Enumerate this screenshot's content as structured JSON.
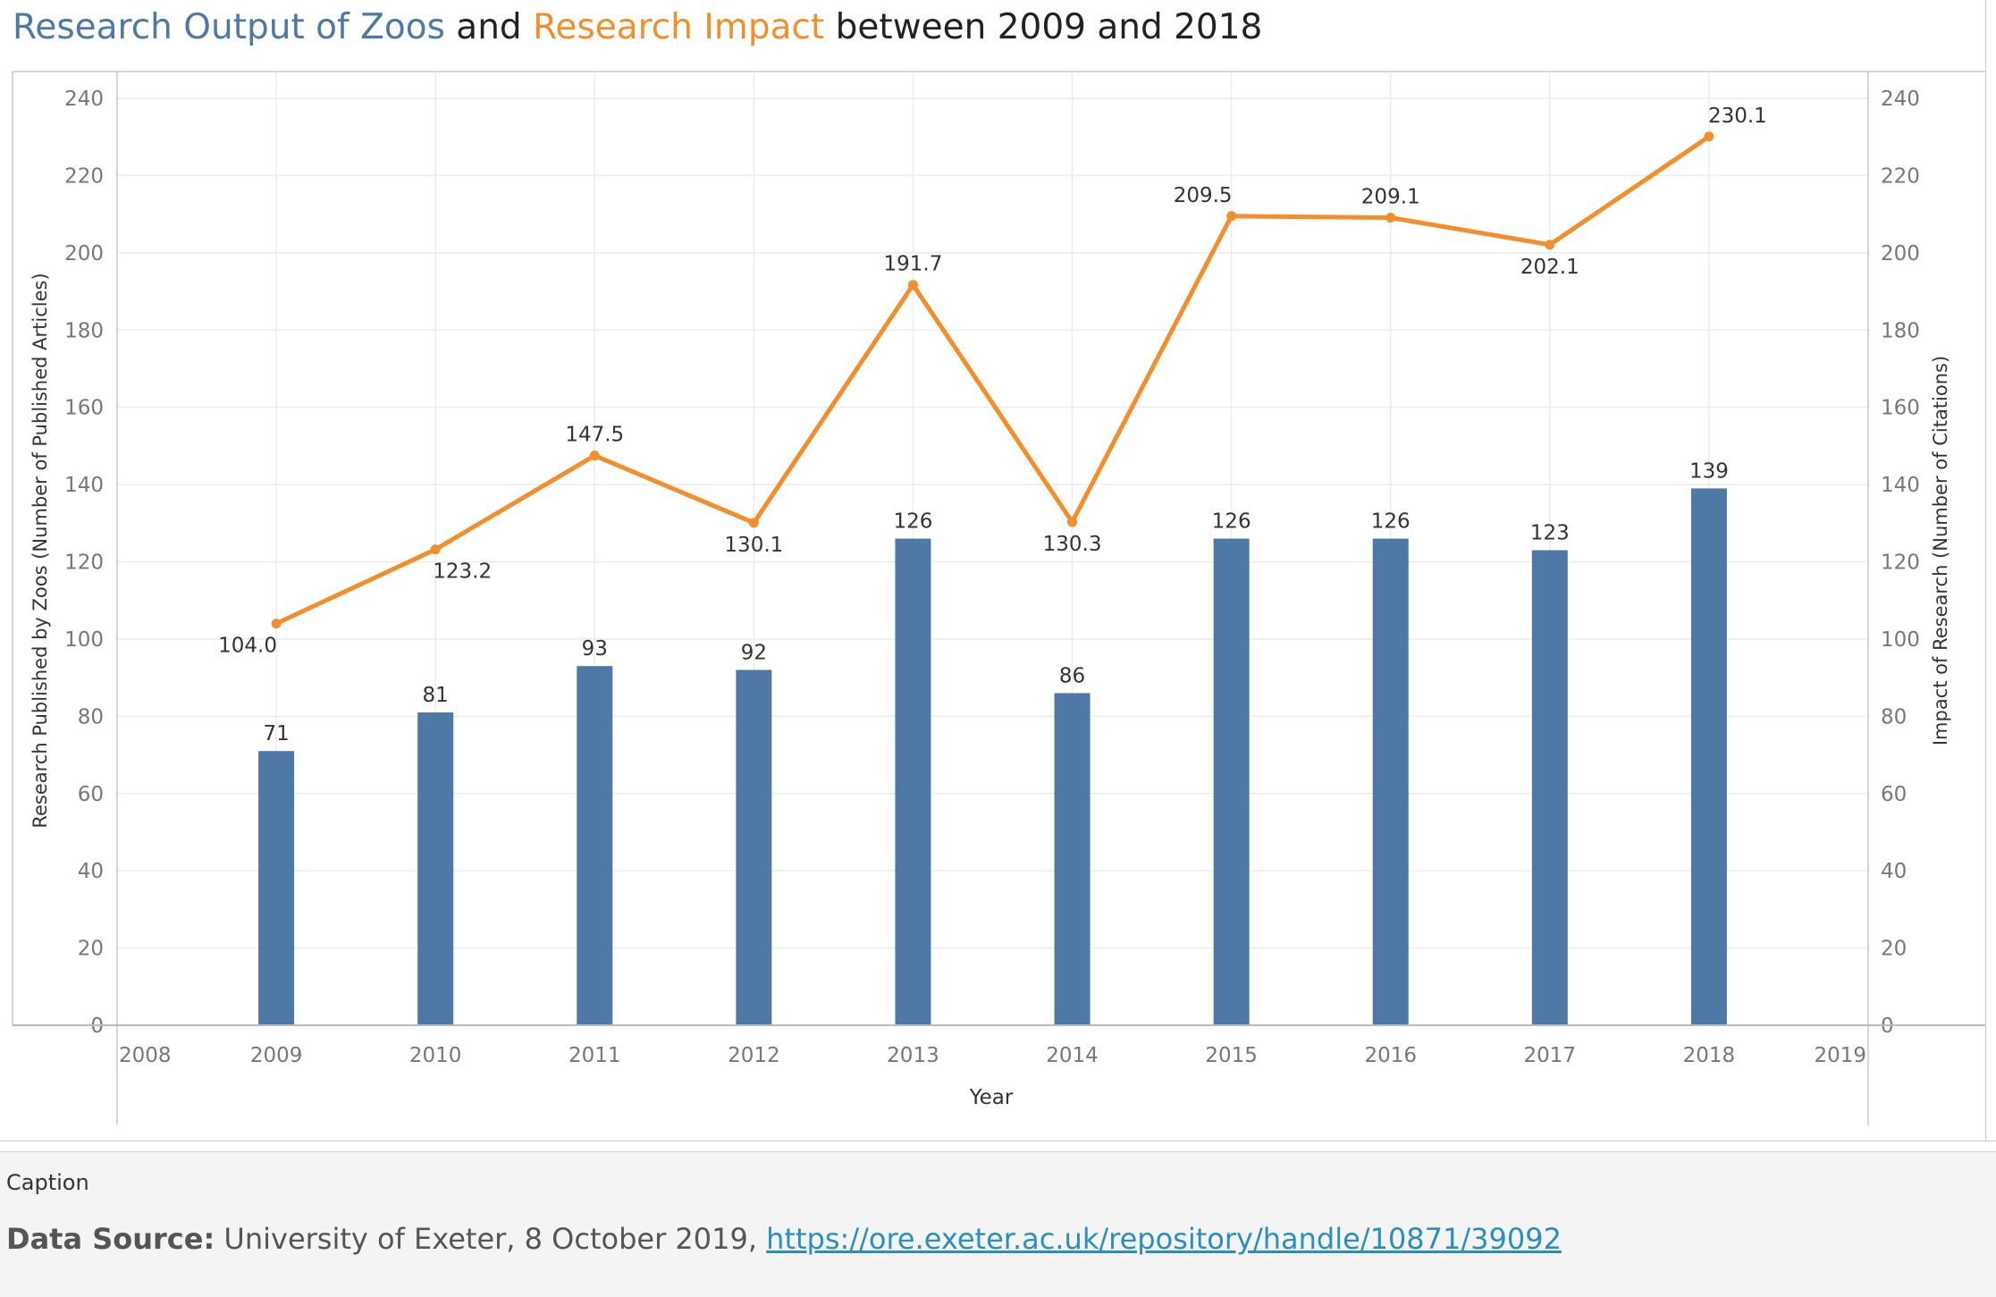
{
  "title": {
    "part1": "Research Output of Zoos",
    "part2": " and ",
    "part3": "Research Impact",
    "part4": " between 2009 and 2018"
  },
  "colors": {
    "bars": "#4e79a7",
    "line": "#f28e2b",
    "grid": "#ececec",
    "axis": "#c8c8c8"
  },
  "chart_data": {
    "type": "bar",
    "categories": [
      "2009",
      "2010",
      "2011",
      "2012",
      "2013",
      "2014",
      "2015",
      "2016",
      "2017",
      "2018"
    ],
    "series": [
      {
        "name": "Research Output of Zoos",
        "type": "bar",
        "axis": "left",
        "values": [
          71,
          81,
          93,
          92,
          126,
          86,
          126,
          126,
          123,
          139
        ]
      },
      {
        "name": "Research Impact",
        "type": "line",
        "axis": "right",
        "values": [
          104.0,
          123.2,
          147.5,
          130.1,
          191.7,
          130.3,
          209.5,
          209.1,
          202.1,
          230.1
        ]
      }
    ],
    "x_ticks": [
      "2008",
      "2009",
      "2010",
      "2011",
      "2012",
      "2013",
      "2014",
      "2015",
      "2016",
      "2017",
      "2018",
      "2019"
    ],
    "xlim": [
      2008,
      2019
    ],
    "y_ticks": [
      "0",
      "20",
      "40",
      "60",
      "80",
      "100",
      "120",
      "140",
      "160",
      "180",
      "200",
      "220",
      "240"
    ],
    "ylim": [
      0,
      240
    ],
    "y2_ticks": [
      "0",
      "20",
      "40",
      "60",
      "80",
      "100",
      "120",
      "140",
      "160",
      "180",
      "200",
      "220",
      "240"
    ],
    "y2lim": [
      0,
      240
    ],
    "bar_labels": [
      "71",
      "81",
      "93",
      "92",
      "126",
      "86",
      "126",
      "126",
      "123",
      "139"
    ],
    "line_labels": [
      "104.0",
      "123.2",
      "147.5",
      "130.1",
      "191.7",
      "130.3",
      "209.5",
      "209.1",
      "202.1",
      "230.1"
    ],
    "line_label_side": [
      "below",
      "below",
      "above",
      "below",
      "above",
      "below",
      "above",
      "above",
      "below",
      "above"
    ],
    "xlabel": "Year",
    "ylabel": "Research Published by Zoos (Number of Published Articles)",
    "y2label": "Impact of Research (Number of Citations)",
    "grid": true
  },
  "caption": {
    "label": "Caption",
    "source_label": "Data Source:",
    "source_text": " University of Exeter, 8 October 2019, ",
    "source_link": "https://ore.exeter.ac.uk/repository/handle/10871/39092"
  }
}
